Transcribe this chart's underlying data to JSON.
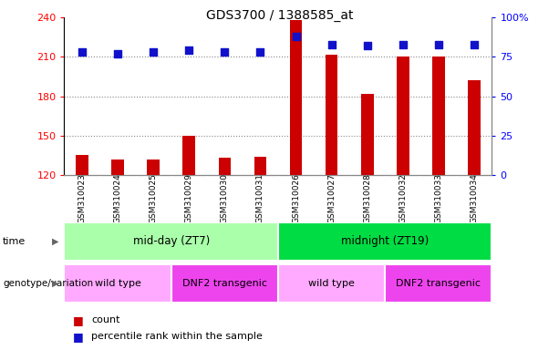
{
  "title": "GDS3700 / 1388585_at",
  "samples": [
    "GSM310023",
    "GSM310024",
    "GSM310025",
    "GSM310029",
    "GSM310030",
    "GSM310031",
    "GSM310026",
    "GSM310027",
    "GSM310028",
    "GSM310032",
    "GSM310033",
    "GSM310034"
  ],
  "counts": [
    135,
    132,
    132,
    150,
    133,
    134,
    238,
    212,
    182,
    210,
    210,
    192
  ],
  "percentiles": [
    78,
    77,
    78,
    79,
    78,
    78,
    88,
    83,
    82,
    83,
    83,
    83
  ],
  "ylim_left": [
    120,
    240
  ],
  "ylim_right": [
    0,
    100
  ],
  "yticks_left": [
    120,
    150,
    180,
    210,
    240
  ],
  "yticks_right": [
    0,
    25,
    50,
    75,
    100
  ],
  "ytick_labels_right": [
    "0",
    "25",
    "50",
    "75",
    "100%"
  ],
  "bar_color": "#cc0000",
  "dot_color": "#1111cc",
  "time_groups": [
    {
      "label": "mid-day (ZT7)",
      "start": 0,
      "end": 6,
      "color": "#aaffaa"
    },
    {
      "label": "midnight (ZT19)",
      "start": 6,
      "end": 12,
      "color": "#00dd44"
    }
  ],
  "genotype_groups": [
    {
      "label": "wild type",
      "start": 0,
      "end": 3,
      "color": "#ffaaff"
    },
    {
      "label": "DNF2 transgenic",
      "start": 3,
      "end": 6,
      "color": "#ee44ee"
    },
    {
      "label": "wild type",
      "start": 6,
      "end": 9,
      "color": "#ffaaff"
    },
    {
      "label": "DNF2 transgenic",
      "start": 9,
      "end": 12,
      "color": "#ee44ee"
    }
  ],
  "time_label": "time",
  "genotype_label": "genotype/variation",
  "legend_count": "count",
  "legend_percentile": "percentile rank within the sample",
  "bar_width": 0.35,
  "dot_size": 35,
  "background_color": "#ffffff",
  "grid_color": "#888888",
  "plot_bg": "#ffffff",
  "tick_area_color": "#cccccc"
}
